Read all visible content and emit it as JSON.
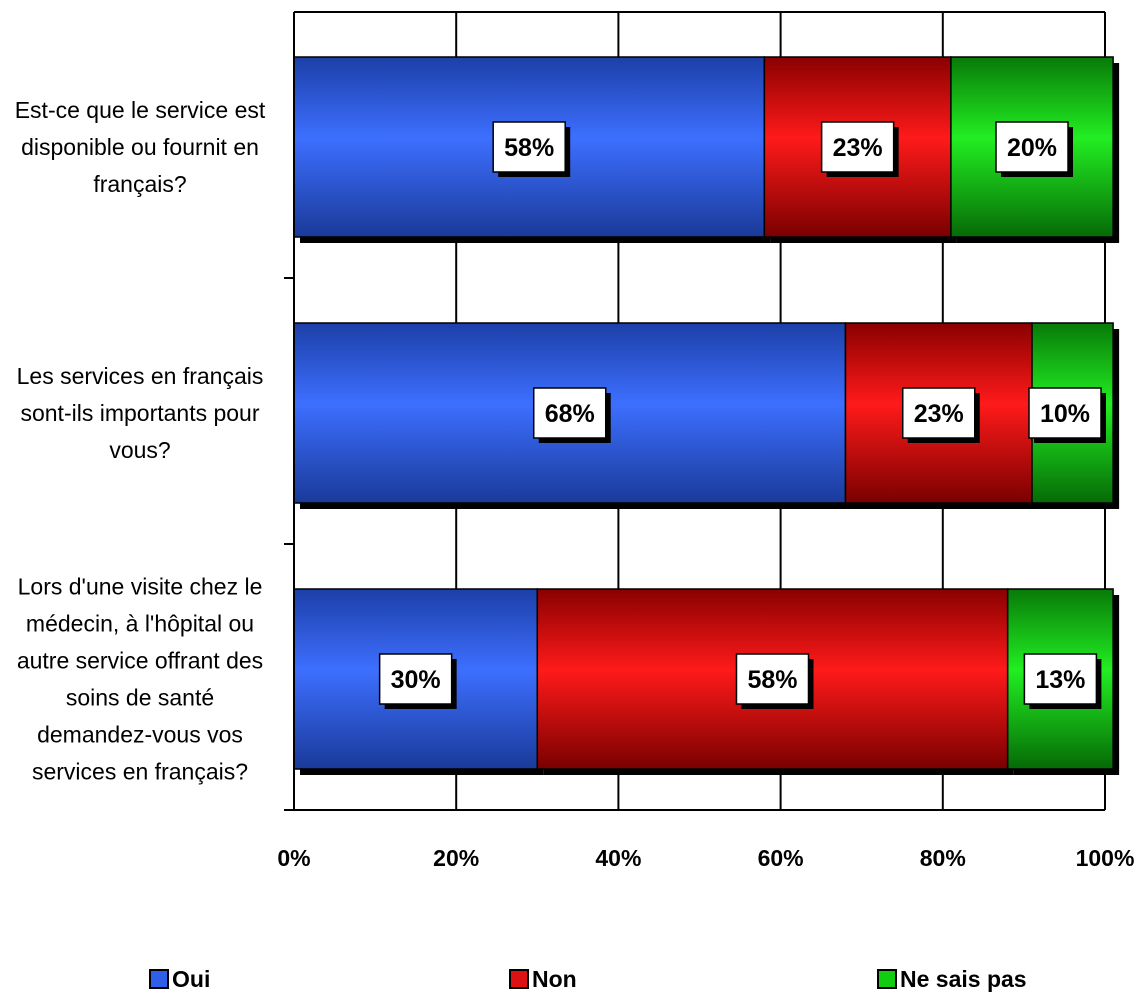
{
  "chart_data": {
    "type": "bar",
    "orientation": "horizontal",
    "stacked": true,
    "categories": [
      [
        "Est-ce que le service est",
        "disponible ou fournit en",
        "français?"
      ],
      [
        "Les services en français",
        "sont-ils importants pour",
        "vous?"
      ],
      [
        "Lors d'une visite chez le",
        "médecin, à l'hôpital ou",
        "autre service offrant des",
        "soins de santé",
        "demandez-vous vos",
        "services en français?"
      ]
    ],
    "series": [
      {
        "name": "Oui",
        "color": "#2f5fe6",
        "values": [
          58,
          68,
          30
        ],
        "labels": [
          "58%",
          "68%",
          "30%"
        ]
      },
      {
        "name": "Non",
        "color": "#dd1111",
        "values": [
          23,
          23,
          58
        ],
        "labels": [
          "23%",
          "23%",
          "58%"
        ]
      },
      {
        "name": "Ne sais pas",
        "color": "#11cc11",
        "values": [
          20,
          10,
          13
        ],
        "labels": [
          "20%",
          "10%",
          "13%"
        ]
      }
    ],
    "xlim": [
      0,
      100
    ],
    "xticks": [
      "0%",
      "20%",
      "40%",
      "60%",
      "80%",
      "100%"
    ],
    "grid": true,
    "legend_position": "bottom"
  }
}
